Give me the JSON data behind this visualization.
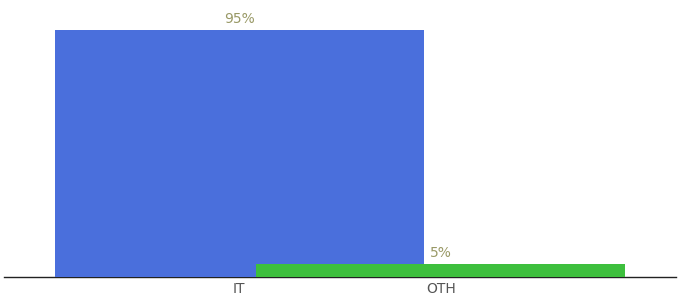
{
  "categories": [
    "IT",
    "OTH"
  ],
  "values": [
    95,
    5
  ],
  "bar_colors": [
    "#4a6fdc",
    "#3dbf3d"
  ],
  "labels": [
    "95%",
    "5%"
  ],
  "ylim": [
    0,
    105
  ],
  "background_color": "#ffffff",
  "label_color": "#999966",
  "tick_color": "#555555",
  "bar_width": 0.55,
  "x_positions": [
    0.35,
    0.65
  ],
  "xlim": [
    0.0,
    1.0
  ]
}
